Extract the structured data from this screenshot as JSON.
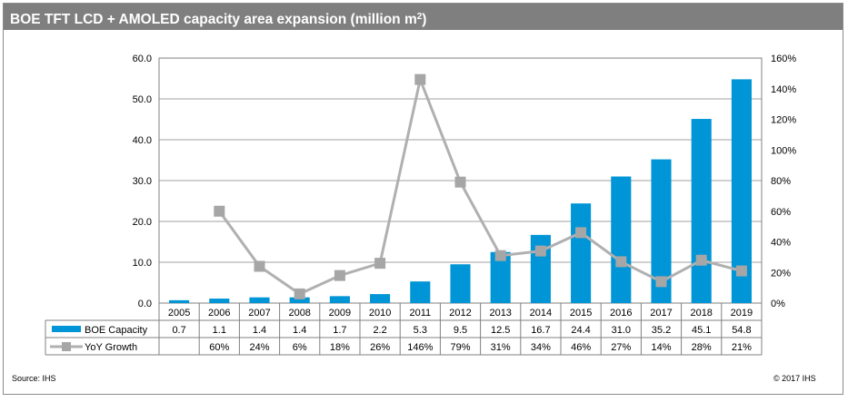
{
  "title": "BOE TFT LCD + AMOLED capacity area expansion (million m",
  "title_sup": "2",
  "title_tail": ")",
  "source": "Source: IHS",
  "copyright": "© 2017 IHS",
  "colors": {
    "header": "#7f7f7f",
    "bar": "#0095d6",
    "line": "#b0b0b0",
    "marker": "#a6a6a6"
  },
  "chart_data": {
    "type": "bar",
    "categories": [
      "2005",
      "2006",
      "2007",
      "2008",
      "2009",
      "2010",
      "2011",
      "2012",
      "2013",
      "2014",
      "2015",
      "2016",
      "2017",
      "2018",
      "2019"
    ],
    "series": [
      {
        "name": "BOE Capacity",
        "type": "bar",
        "axis": "left",
        "values": [
          0.7,
          1.1,
          1.4,
          1.4,
          1.7,
          2.2,
          5.3,
          9.5,
          12.5,
          16.7,
          24.4,
          31.0,
          35.2,
          45.1,
          54.8
        ],
        "labels": [
          "0.7",
          "1.1",
          "1.4",
          "1.4",
          "1.7",
          "2.2",
          "5.3",
          "9.5",
          "12.5",
          "16.7",
          "24.4",
          "31.0",
          "35.2",
          "45.1",
          "54.8"
        ]
      },
      {
        "name": "YoY Growth",
        "type": "line",
        "axis": "right",
        "values": [
          null,
          60,
          24,
          6,
          18,
          26,
          146,
          79,
          31,
          34,
          46,
          27,
          14,
          28,
          21
        ],
        "labels": [
          "",
          "60%",
          "24%",
          "6%",
          "18%",
          "26%",
          "146%",
          "79%",
          "31%",
          "34%",
          "46%",
          "27%",
          "14%",
          "28%",
          "21%"
        ]
      }
    ],
    "left_axis": {
      "min": 0,
      "max": 60,
      "step": 10,
      "tick_labels": [
        "0.0",
        "10.0",
        "20.0",
        "30.0",
        "40.0",
        "50.0",
        "60.0"
      ]
    },
    "right_axis": {
      "min": 0,
      "max": 160,
      "step": 20,
      "tick_labels": [
        "0%",
        "20%",
        "40%",
        "60%",
        "80%",
        "100%",
        "120%",
        "140%",
        "160%"
      ]
    },
    "grid": true,
    "legend": "data-table"
  }
}
